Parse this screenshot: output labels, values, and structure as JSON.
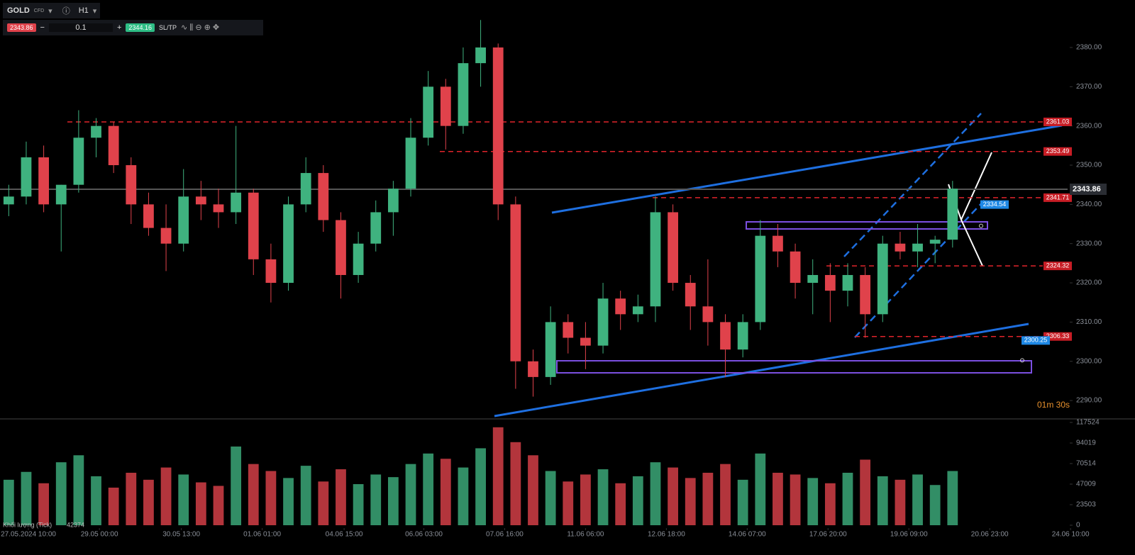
{
  "toolbar": {
    "symbol": "GOLD",
    "symbol_type": "CFD",
    "timeframe": "H1",
    "bid": "2343.86",
    "quantity": "0.1",
    "ask": "2344.16",
    "sltp": "SL/TP"
  },
  "chart_data": {
    "type": "candlestick",
    "x": [
      0,
      8,
      16,
      24,
      32,
      40,
      48,
      56,
      64,
      72,
      80,
      88,
      96,
      104,
      112,
      120,
      128,
      136,
      144,
      152,
      160,
      168,
      176,
      184,
      192,
      200,
      208,
      216,
      224,
      232,
      240,
      248,
      256,
      264,
      272,
      280,
      288,
      296,
      304,
      312,
      320,
      328,
      336,
      344,
      352,
      360,
      368,
      376,
      384,
      392,
      400,
      408,
      416,
      424,
      432
    ],
    "open": [
      2340,
      2342,
      2352,
      2340,
      2345,
      2357,
      2360,
      2350,
      2340,
      2334,
      2330,
      2342,
      2340,
      2338,
      2343,
      2326,
      2320,
      2340,
      2348,
      2336,
      2322,
      2330,
      2338,
      2344,
      2357,
      2370,
      2360,
      2376,
      2380,
      2340,
      2300,
      2296,
      2310,
      2306,
      2304,
      2316,
      2312,
      2314,
      2338,
      2320,
      2314,
      2310,
      2303,
      2310,
      2332,
      2328,
      2320,
      2322,
      2318,
      2322,
      2312,
      2330,
      2328,
      2330,
      2331
    ],
    "high": [
      2345,
      2356,
      2355,
      2345,
      2364,
      2362,
      2361,
      2352,
      2343,
      2340,
      2349,
      2346,
      2344,
      2360,
      2344,
      2330,
      2342,
      2352,
      2350,
      2338,
      2333,
      2341,
      2346,
      2362,
      2374,
      2372,
      2380,
      2387,
      2381,
      2342,
      2303,
      2314,
      2312,
      2310,
      2320,
      2318,
      2317,
      2342,
      2340,
      2322,
      2326,
      2312,
      2312,
      2336,
      2335,
      2330,
      2326,
      2325,
      2325,
      2324,
      2332,
      2333,
      2335,
      2332,
      2346
    ],
    "low": [
      2337,
      2340,
      2338,
      2328,
      2343,
      2352,
      2348,
      2335,
      2332,
      2323,
      2328,
      2336,
      2334,
      2335,
      2322,
      2315,
      2318,
      2338,
      2333,
      2316,
      2320,
      2328,
      2332,
      2342,
      2355,
      2354,
      2358,
      2370,
      2336,
      2293,
      2291,
      2294,
      2302,
      2298,
      2302,
      2308,
      2310,
      2310,
      2318,
      2308,
      2304,
      2296,
      2301,
      2308,
      2324,
      2316,
      2312,
      2310,
      2314,
      2306,
      2310,
      2326,
      2324,
      2325,
      2329
    ],
    "close": [
      2342,
      2352,
      2340,
      2345,
      2357,
      2360,
      2350,
      2340,
      2334,
      2330,
      2342,
      2340,
      2338,
      2343,
      2326,
      2320,
      2340,
      2348,
      2336,
      2322,
      2330,
      2338,
      2344,
      2357,
      2370,
      2360,
      2376,
      2380,
      2340,
      2300,
      2296,
      2310,
      2306,
      2304,
      2316,
      2312,
      2314,
      2338,
      2320,
      2314,
      2310,
      2303,
      2310,
      2332,
      2328,
      2320,
      2322,
      2318,
      2322,
      2312,
      2330,
      2328,
      2330,
      2331,
      2344
    ],
    "up_color": "#3fb27f",
    "down_color": "#e0424b",
    "xlim": [
      0,
      519.5
    ],
    "xticks": [
      {
        "value": 13,
        "label": "27.05.2024 10:00"
      },
      {
        "value": 45.5,
        "label": "29.05 00:00"
      },
      {
        "value": 83,
        "label": "30.05 13:00"
      },
      {
        "value": 120,
        "label": "01.06 01:00"
      },
      {
        "value": 157.5,
        "label": "04.06 15:00"
      },
      {
        "value": 194,
        "label": "06.06 03:00"
      },
      {
        "value": 231,
        "label": "07.06 16:00"
      },
      {
        "value": 268,
        "label": "11.06 06:00"
      },
      {
        "value": 305,
        "label": "12.06 18:00"
      },
      {
        "value": 342,
        "label": "14.06 07:00"
      },
      {
        "value": 379,
        "label": "17.06 20:00"
      },
      {
        "value": 416,
        "label": "19.06 09:00"
      },
      {
        "value": 453,
        "label": "20.06 23:00"
      },
      {
        "value": 490,
        "label": "24.06 10:00"
      }
    ],
    "ylim": [
      2285.5,
      2392.1
    ],
    "yticks": [
      {
        "value": 2290,
        "label": "2290.00"
      },
      {
        "value": 2300,
        "label": "2300.00"
      },
      {
        "value": 2310,
        "label": "2310.00"
      },
      {
        "value": 2320,
        "label": "2320.00"
      },
      {
        "value": 2330,
        "label": "2330.00"
      },
      {
        "value": 2340,
        "label": "2340.00"
      },
      {
        "value": 2350,
        "label": "2350.00"
      },
      {
        "value": 2360,
        "label": "2360.00"
      },
      {
        "value": 2370,
        "label": "2370.00"
      },
      {
        "value": 2380,
        "label": "2380.00"
      }
    ],
    "levels": [
      2361.03,
      2353.49,
      2341.71,
      2324.32,
      2306.33
    ],
    "current_price": 2343.86,
    "markers": [
      2334.54,
      2300.25
    ],
    "countdown": "01m 30s",
    "volume": {
      "name": "Khối lượng (Tick)",
      "last": 42374,
      "values": [
        52000,
        61000,
        48000,
        72000,
        80000,
        56000,
        43000,
        60000,
        52000,
        66000,
        58000,
        49000,
        45000,
        90000,
        70000,
        62000,
        54000,
        68000,
        50000,
        64000,
        47000,
        58000,
        55000,
        70000,
        82000,
        76000,
        66000,
        88000,
        112000,
        95000,
        80000,
        62000,
        50000,
        58000,
        64000,
        48000,
        56000,
        72000,
        66000,
        54000,
        60000,
        70000,
        52000,
        82000,
        60000,
        58000,
        54000,
        48000,
        60000,
        75000,
        56000,
        52000,
        58000,
        46000,
        62000
      ],
      "ylim": [
        0,
        120766
      ],
      "yticks": [
        0,
        23503,
        47009,
        70514,
        94019,
        117524
      ]
    }
  }
}
